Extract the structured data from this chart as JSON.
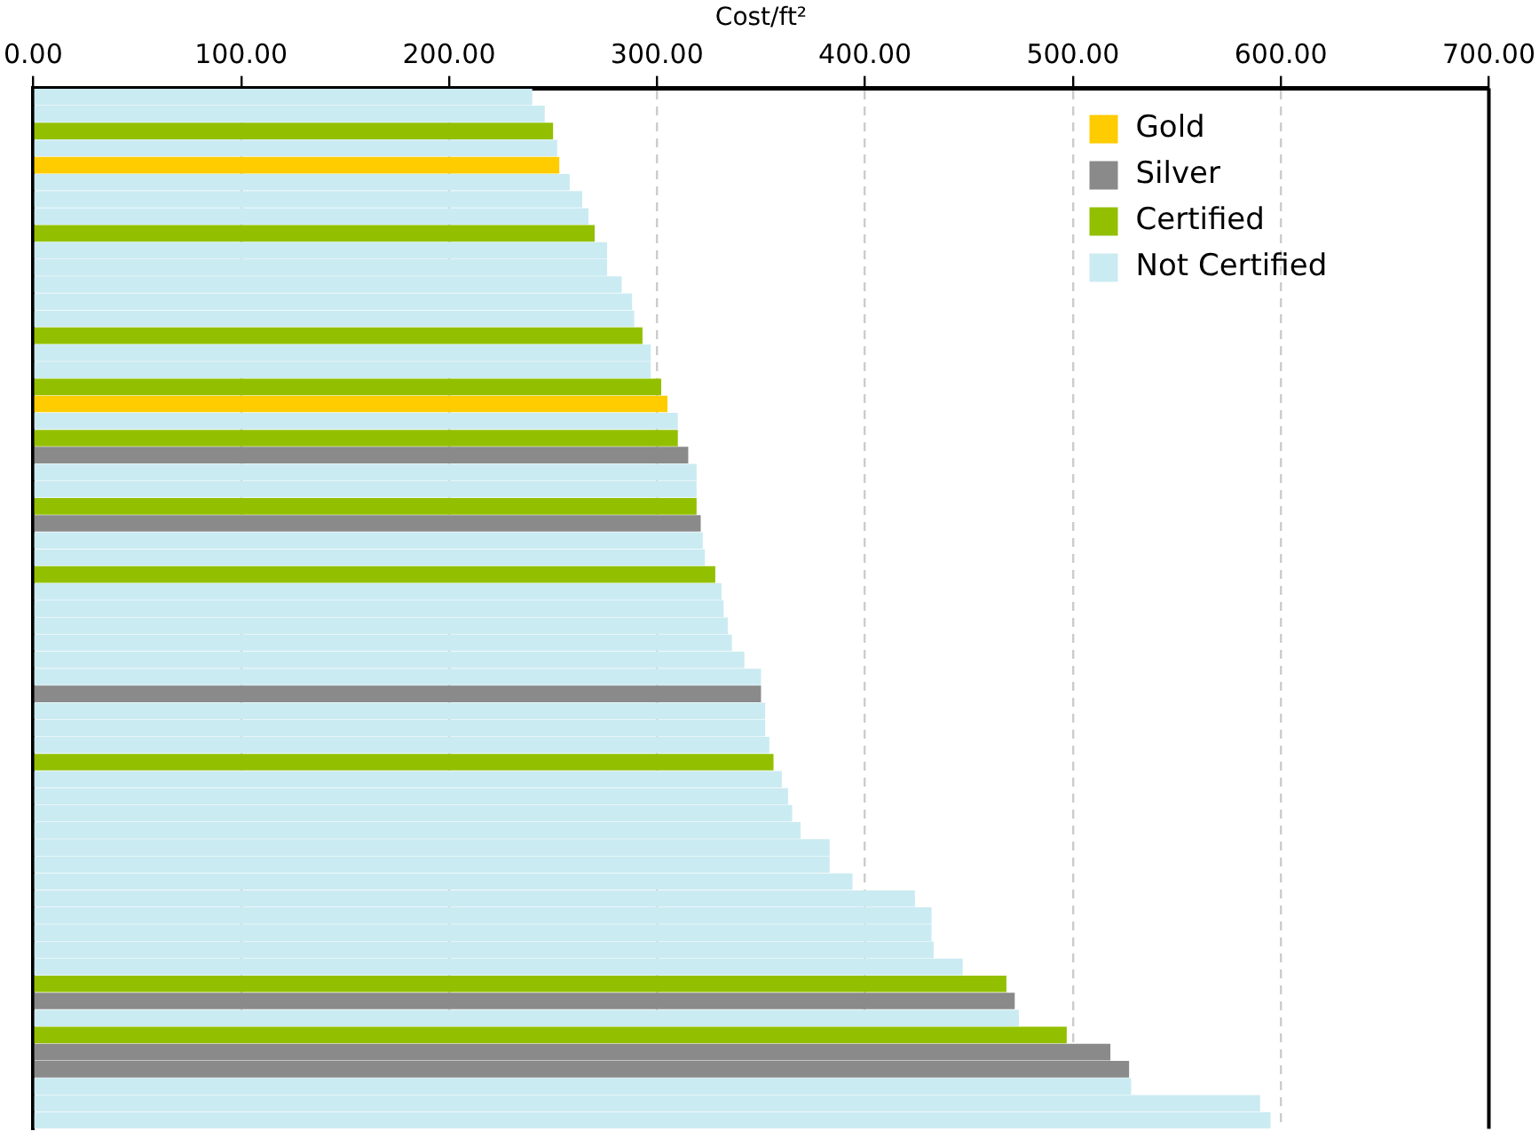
{
  "chart_data": {
    "type": "bar",
    "orientation": "horizontal",
    "xlabel": "Cost/ft²",
    "categories": [
      null,
      null,
      null,
      null,
      null,
      null,
      null,
      null,
      null,
      null,
      null,
      null,
      null,
      null,
      null,
      null,
      null,
      null,
      null,
      null,
      null,
      null,
      null,
      null,
      null,
      null,
      null,
      null,
      null,
      null,
      null,
      null,
      null,
      null,
      null,
      null,
      null,
      null,
      null,
      null,
      null,
      null,
      null,
      null,
      null,
      null,
      null,
      null,
      null,
      null,
      null,
      null,
      null,
      null,
      null,
      null,
      null,
      null,
      null,
      null,
      null
    ],
    "series": [
      {
        "name": "Gold",
        "color": "#ffcc00",
        "values": [
          null,
          null,
          null,
          null,
          253,
          null,
          null,
          null,
          null,
          null,
          null,
          null,
          null,
          null,
          null,
          null,
          null,
          null,
          305,
          null,
          null,
          null,
          null,
          null,
          null,
          null,
          null,
          null,
          null,
          null,
          null,
          null,
          null,
          null,
          null,
          null,
          null,
          null,
          null,
          null,
          null,
          null,
          null,
          null,
          null,
          null,
          null,
          null,
          null,
          null,
          null,
          null,
          null,
          null,
          null,
          null,
          null,
          null,
          null,
          null,
          null
        ]
      },
      {
        "name": "Silver",
        "color": "#8a8a8a",
        "values": [
          null,
          null,
          null,
          null,
          null,
          null,
          null,
          null,
          null,
          null,
          null,
          null,
          null,
          null,
          null,
          null,
          null,
          null,
          null,
          null,
          null,
          315,
          null,
          null,
          null,
          321,
          null,
          null,
          null,
          null,
          null,
          null,
          null,
          null,
          null,
          350,
          null,
          null,
          null,
          null,
          null,
          null,
          null,
          null,
          null,
          null,
          null,
          null,
          null,
          null,
          null,
          null,
          null,
          472,
          null,
          null,
          518,
          527,
          null,
          null,
          null
        ]
      },
      {
        "name": "Certified",
        "color": "#92c000",
        "values": [
          null,
          null,
          250,
          null,
          null,
          null,
          null,
          null,
          270,
          null,
          null,
          null,
          null,
          null,
          293,
          null,
          null,
          302,
          null,
          null,
          310,
          null,
          null,
          null,
          319,
          null,
          null,
          null,
          328,
          null,
          null,
          null,
          null,
          null,
          null,
          null,
          null,
          null,
          null,
          356,
          null,
          null,
          null,
          null,
          null,
          null,
          null,
          null,
          null,
          null,
          null,
          null,
          468,
          null,
          null,
          497,
          null,
          null,
          null,
          null,
          null
        ]
      },
      {
        "name": "Not Certified",
        "color": "#cbebf2",
        "values": [
          240,
          246,
          null,
          252,
          null,
          258,
          264,
          267,
          null,
          276,
          276,
          283,
          288,
          289,
          null,
          297,
          297,
          null,
          null,
          310,
          null,
          null,
          319,
          319,
          null,
          null,
          322,
          323,
          null,
          331,
          332,
          334,
          336,
          342,
          350,
          null,
          352,
          352,
          354,
          null,
          360,
          363,
          365,
          369,
          383,
          383,
          394,
          424,
          432,
          432,
          433,
          447,
          null,
          null,
          474,
          null,
          null,
          null,
          528,
          590,
          595
        ]
      }
    ],
    "xlim": [
      0,
      700
    ],
    "xticks": [
      {
        "value": 0,
        "label": "0.00"
      },
      {
        "value": 100,
        "label": "100.00"
      },
      {
        "value": 200,
        "label": "200.00"
      },
      {
        "value": 300,
        "label": "300.00"
      },
      {
        "value": 400,
        "label": "400.00"
      },
      {
        "value": 500,
        "label": "500.00"
      },
      {
        "value": 600,
        "label": "600.00"
      },
      {
        "value": 700,
        "label": "700.00"
      }
    ],
    "grid": "x",
    "legend": "top right"
  }
}
